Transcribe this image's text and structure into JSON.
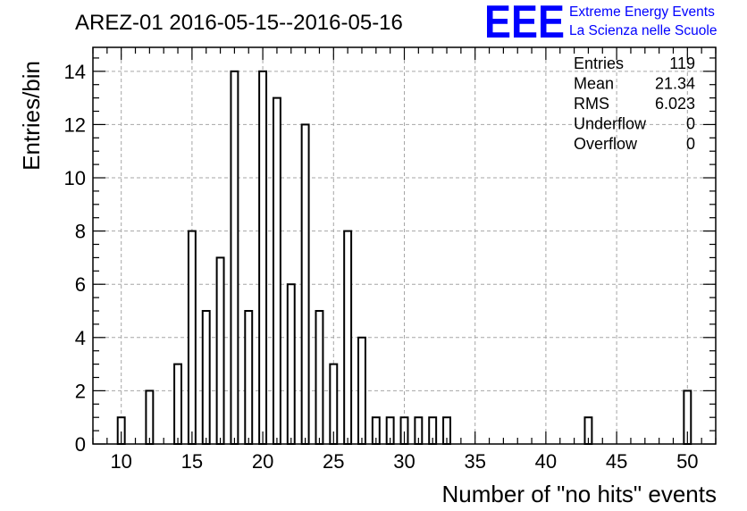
{
  "chart_data": {
    "type": "bar",
    "title": "AREZ-01 2016-05-15--2016-05-16",
    "xlabel": "Number of \"no hits\" events",
    "ylabel": "Entries/bin",
    "xlim": [
      8,
      52
    ],
    "ylim": [
      0,
      14.9
    ],
    "x_ticks": [
      10,
      15,
      20,
      25,
      30,
      35,
      40,
      45,
      50
    ],
    "y_ticks": [
      0,
      2,
      4,
      6,
      8,
      10,
      12,
      14
    ],
    "grid": true,
    "bar_width": 0.5,
    "bins": [
      {
        "x": 10,
        "value": 1
      },
      {
        "x": 12,
        "value": 2
      },
      {
        "x": 14,
        "value": 3
      },
      {
        "x": 15,
        "value": 8
      },
      {
        "x": 16,
        "value": 5
      },
      {
        "x": 17,
        "value": 7
      },
      {
        "x": 18,
        "value": 14
      },
      {
        "x": 19,
        "value": 5
      },
      {
        "x": 20,
        "value": 14
      },
      {
        "x": 21,
        "value": 13
      },
      {
        "x": 22,
        "value": 6
      },
      {
        "x": 23,
        "value": 12
      },
      {
        "x": 24,
        "value": 5
      },
      {
        "x": 25,
        "value": 3
      },
      {
        "x": 26,
        "value": 8
      },
      {
        "x": 27,
        "value": 4
      },
      {
        "x": 28,
        "value": 1
      },
      {
        "x": 29,
        "value": 1
      },
      {
        "x": 30,
        "value": 1
      },
      {
        "x": 31,
        "value": 1
      },
      {
        "x": 32,
        "value": 1
      },
      {
        "x": 33,
        "value": 1
      },
      {
        "x": 43,
        "value": 1
      },
      {
        "x": 50,
        "value": 2
      }
    ],
    "stats": [
      {
        "label": "Entries",
        "value": "119"
      },
      {
        "label": "Mean",
        "value": "21.34"
      },
      {
        "label": "RMS",
        "value": "6.023"
      },
      {
        "label": "Underflow",
        "value": "0"
      },
      {
        "label": "Overflow",
        "value": "0"
      }
    ]
  },
  "logo": {
    "letters": "EEE",
    "line1": "Extreme Energy Events",
    "line2": "La Scienza nelle Scuole"
  },
  "colors": {
    "logo": "#0000ff",
    "bar_fill": "#ffffff",
    "bar_stroke": "#000000",
    "grid": "#a6a6a6"
  }
}
